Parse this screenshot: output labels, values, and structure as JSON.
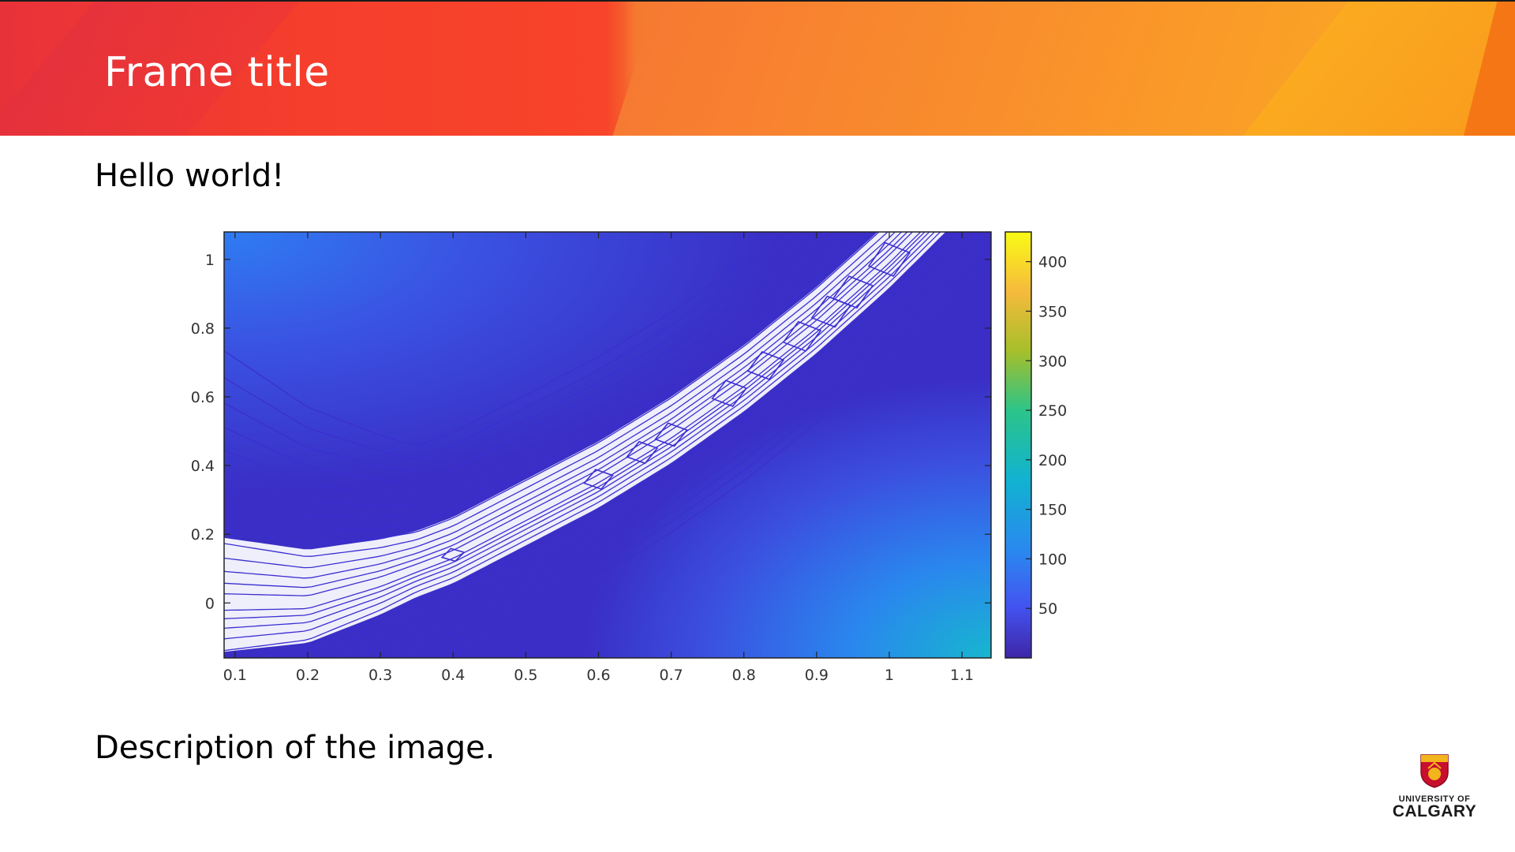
{
  "slide": {
    "title": "Frame title",
    "body_text": "Hello world!",
    "caption": "Description of the image.",
    "logo": {
      "line1": "UNIVERSITY OF",
      "line2": "CALGARY"
    }
  },
  "colors": {
    "header_red": "#e8323a",
    "header_orange": "#f98a1a",
    "contour_line": "#3b2fd0",
    "plot_dark": "#3529c4",
    "colormap": [
      "#3e26a8",
      "#4353f0",
      "#2a88f0",
      "#11b3d0",
      "#2bc48a",
      "#a6bf2a",
      "#f6ba3c",
      "#f9fb15"
    ]
  },
  "chart_data": {
    "type": "heatmap",
    "title": "",
    "xlabel": "",
    "ylabel": "",
    "xlim": [
      0.085,
      1.14
    ],
    "ylim": [
      -0.16,
      1.08
    ],
    "x_ticks": [
      0.1,
      0.2,
      0.3,
      0.4,
      0.5,
      0.6,
      0.7,
      0.8,
      0.9,
      1,
      1.1
    ],
    "x_tick_labels": [
      "0.1",
      "0.2",
      "0.3",
      "0.4",
      "0.5",
      "0.6",
      "0.7",
      "0.8",
      "0.9",
      "1",
      "1.1"
    ],
    "y_ticks": [
      0,
      0.2,
      0.4,
      0.6,
      0.8,
      1
    ],
    "y_tick_labels": [
      "0",
      "0.2",
      "0.4",
      "0.6",
      "0.8",
      "1"
    ],
    "colorbar": {
      "range": [
        0,
        430
      ],
      "ticks": [
        50,
        100,
        150,
        200,
        250,
        300,
        350,
        400
      ],
      "tick_labels": [
        "50",
        "100",
        "150",
        "200",
        "250",
        "300",
        "350",
        "400"
      ]
    },
    "valley_curve": {
      "x": [
        0.085,
        0.15,
        0.2,
        0.3,
        0.4,
        0.5,
        0.6,
        0.7,
        0.8,
        0.9,
        1.0,
        1.1,
        1.14
      ],
      "y": [
        0.0,
        0.0,
        0.0,
        0.06,
        0.14,
        0.25,
        0.36,
        0.49,
        0.64,
        0.81,
        1.0,
        1.21,
        1.3
      ]
    },
    "grid": false
  }
}
